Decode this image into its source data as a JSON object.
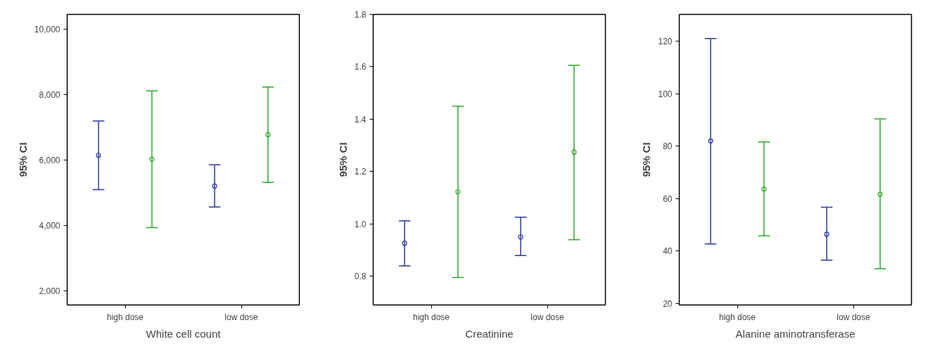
{
  "chart_data": [
    {
      "type": "scatter",
      "xlabel": "White cell count",
      "ylabel": "95% CI",
      "categories": [
        "high dose",
        "low dose"
      ],
      "ylim": [
        1560,
        10450
      ],
      "yticks": [
        {
          "value": 2000,
          "label": "2,000"
        },
        {
          "value": 4000,
          "label": "4,000"
        },
        {
          "value": 6000,
          "label": "6,000"
        },
        {
          "value": 8000,
          "label": "8,000"
        },
        {
          "value": 10000,
          "label": "10,000"
        }
      ],
      "grid": false,
      "marker": "circle",
      "series": [
        {
          "color": "#2b3a9e",
          "values": [
            6140,
            5200
          ],
          "errors": [
            [
              5090,
              7190
            ],
            [
              4560,
              5850
            ]
          ]
        },
        {
          "color": "#2ea82e",
          "values": [
            6020,
            6770
          ],
          "errors": [
            [
              3930,
              8110
            ],
            [
              5310,
              8230
            ]
          ]
        }
      ]
    },
    {
      "type": "scatter",
      "xlabel": "Creatinine",
      "ylabel": "95% CI",
      "categories": [
        "high dose",
        "low dose"
      ],
      "ylim": [
        0.69,
        1.8
      ],
      "yticks": [
        0.8,
        {
          "value": 1.0,
          "label": "1.0"
        },
        1.2,
        1.4,
        1.6,
        1.8
      ],
      "grid": false,
      "marker": "circle",
      "series": [
        {
          "color": "#2b3a9e",
          "values": [
            0.926,
            0.95
          ],
          "errors": [
            [
              0.839,
              1.011
            ],
            [
              0.879,
              1.025
            ]
          ]
        },
        {
          "color": "#2ea82e",
          "values": [
            1.122,
            1.274
          ],
          "errors": [
            [
              0.795,
              1.449
            ],
            [
              0.939,
              1.606
            ]
          ]
        }
      ]
    },
    {
      "type": "scatter",
      "xlabel": "Alanine aminotransferase",
      "ylabel": "95% CI",
      "categories": [
        "high dose",
        "low dose"
      ],
      "ylim": [
        19.4,
        130.3
      ],
      "yticks": [
        20,
        40,
        60,
        80,
        100,
        120
      ],
      "grid": false,
      "marker": "circle",
      "series": [
        {
          "color": "#2b3a9e",
          "values": [
            82.0,
            46.4
          ],
          "errors": [
            [
              42.7,
              121.1
            ],
            [
              36.5,
              56.7
            ]
          ]
        },
        {
          "color": "#2ea82e",
          "values": [
            63.6,
            61.6
          ],
          "errors": [
            [
              45.8,
              81.6
            ],
            [
              33.2,
              90.4
            ]
          ]
        }
      ]
    }
  ]
}
